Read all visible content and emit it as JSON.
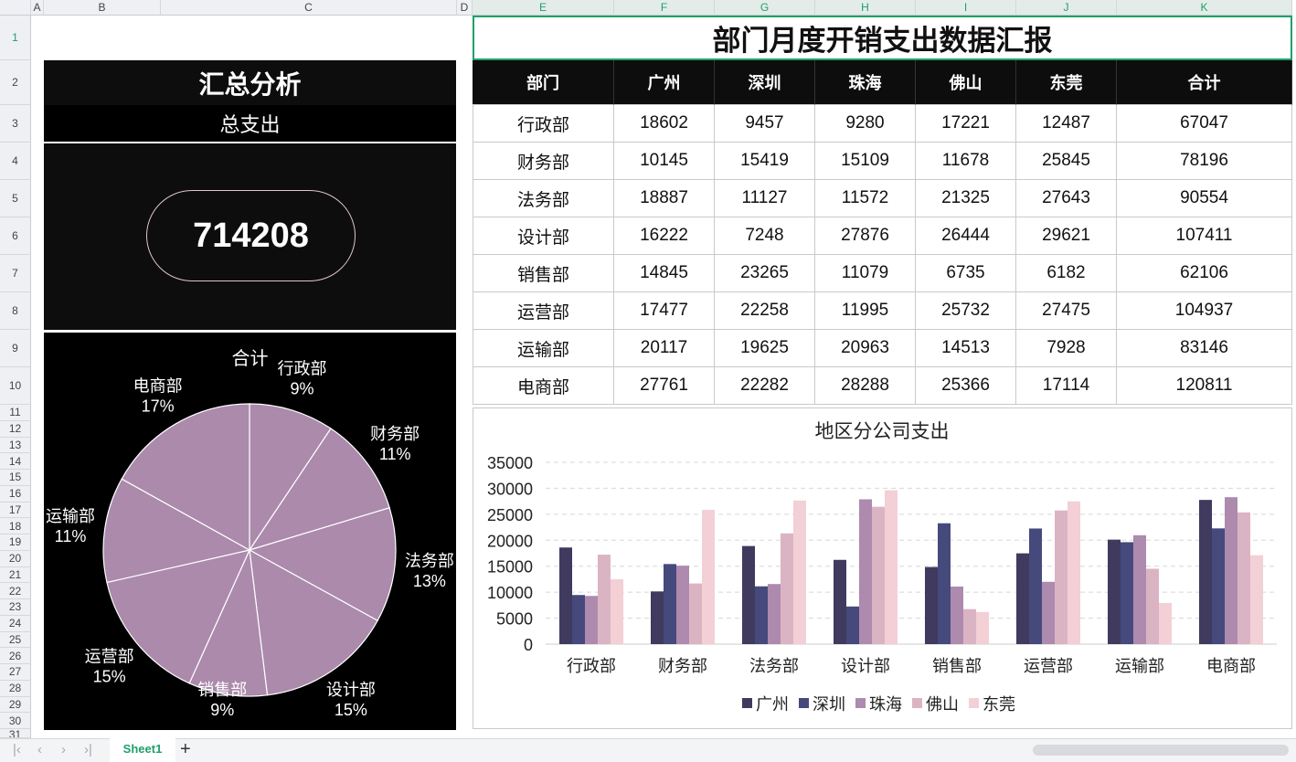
{
  "sheet": {
    "columns": [
      "A",
      "B",
      "C",
      "D",
      "E",
      "F",
      "G",
      "H",
      "I",
      "J",
      "K"
    ],
    "selected_row": "1"
  },
  "summary": {
    "title": "汇总分析",
    "subtitle": "总支出",
    "total": "714208",
    "pie_title": "合计"
  },
  "table": {
    "title": "部门月度开销支出数据汇报",
    "headers": [
      "部门",
      "广州",
      "深圳",
      "珠海",
      "佛山",
      "东莞",
      "合计"
    ],
    "rows": [
      [
        "行政部",
        "18602",
        "9457",
        "9280",
        "17221",
        "12487",
        "67047"
      ],
      [
        "财务部",
        "10145",
        "15419",
        "15109",
        "11678",
        "25845",
        "78196"
      ],
      [
        "法务部",
        "18887",
        "11127",
        "11572",
        "21325",
        "27643",
        "90554"
      ],
      [
        "设计部",
        "16222",
        "7248",
        "27876",
        "26444",
        "29621",
        "107411"
      ],
      [
        "销售部",
        "14845",
        "23265",
        "11079",
        "6735",
        "6182",
        "62106"
      ],
      [
        "运营部",
        "17477",
        "22258",
        "11995",
        "25732",
        "27475",
        "104937"
      ],
      [
        "运输部",
        "20117",
        "19625",
        "20963",
        "14513",
        "7928",
        "83146"
      ],
      [
        "电商部",
        "27761",
        "22282",
        "28288",
        "25366",
        "17114",
        "120811"
      ]
    ]
  },
  "chart_data": [
    {
      "type": "pie",
      "title": "合计",
      "categories": [
        "行政部",
        "财务部",
        "法务部",
        "设计部",
        "销售部",
        "运营部",
        "运输部",
        "电商部"
      ],
      "values": [
        67047,
        78196,
        90554,
        107411,
        62106,
        104937,
        83146,
        120811
      ],
      "labels": [
        "9%",
        "11%",
        "13%",
        "15%",
        "9%",
        "15%",
        "11%",
        "17%"
      ],
      "color": "#ab8aab"
    },
    {
      "type": "bar",
      "title": "地区分公司支出",
      "categories": [
        "行政部",
        "财务部",
        "法务部",
        "设计部",
        "销售部",
        "运营部",
        "运输部",
        "电商部"
      ],
      "ylim": [
        0,
        35000
      ],
      "yticks": [
        "0",
        "5000",
        "10000",
        "15000",
        "20000",
        "25000",
        "30000",
        "35000"
      ],
      "grid": true,
      "legend": "bottom",
      "series": [
        {
          "name": "广州",
          "color": "#3f3a5e",
          "values": [
            18602,
            10145,
            18887,
            16222,
            14845,
            17477,
            20117,
            27761
          ]
        },
        {
          "name": "深圳",
          "color": "#46497c",
          "values": [
            9457,
            15419,
            11127,
            7248,
            23265,
            22258,
            19625,
            22282
          ]
        },
        {
          "name": "珠海",
          "color": "#ad8aae",
          "values": [
            9280,
            15109,
            11572,
            27876,
            11079,
            11995,
            20963,
            28288
          ]
        },
        {
          "name": "佛山",
          "color": "#dbb4c4",
          "values": [
            17221,
            11678,
            21325,
            26444,
            6735,
            25732,
            14513,
            25366
          ]
        },
        {
          "name": "东莞",
          "color": "#f2d0d6",
          "values": [
            12487,
            25845,
            27643,
            29621,
            6182,
            27475,
            7928,
            17114
          ]
        }
      ]
    }
  ],
  "tabs": {
    "active": "Sheet1",
    "add": "+"
  },
  "colors": {
    "accent": "#1fa06a",
    "dark": "#0d0d0d"
  }
}
